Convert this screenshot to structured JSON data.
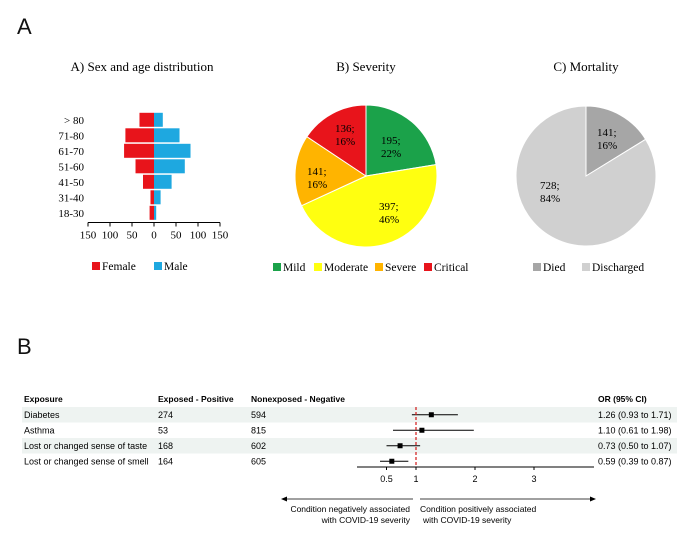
{
  "panel_labels": {
    "a": "A",
    "b": "B"
  },
  "chart_data": [
    {
      "type": "bar",
      "subtype": "population-pyramid",
      "title": "A) Sex and age distribution",
      "categories": [
        "> 80",
        "71-80",
        "61-70",
        "51-60",
        "41-50",
        "31-40",
        "18-30"
      ],
      "series": [
        {
          "name": "Female",
          "color": "#e8141b",
          "values": [
            33,
            65,
            68,
            42,
            25,
            8,
            10
          ]
        },
        {
          "name": "Male",
          "color": "#1ea8e0",
          "values": [
            20,
            58,
            83,
            70,
            40,
            15,
            5
          ]
        }
      ],
      "xticks": [
        "150",
        "100",
        "50",
        "0",
        "50",
        "100",
        "150"
      ],
      "xlim": [
        -150,
        150
      ]
    },
    {
      "type": "pie",
      "title": "B) Severity",
      "slices": [
        {
          "name": "Mild",
          "value": 195,
          "label": "195;",
          "pct": "22%",
          "color": "#1ba24a"
        },
        {
          "name": "Moderate",
          "value": 397,
          "label": "397;",
          "pct": "46%",
          "color": "#ffff10"
        },
        {
          "name": "Severe",
          "value": 141,
          "label": "141;",
          "pct": "16%",
          "color": "#ffb400"
        },
        {
          "name": "Critical",
          "value": 136,
          "label": "136;",
          "pct": "16%",
          "color": "#e8141b"
        }
      ]
    },
    {
      "type": "pie",
      "title": "C) Mortality",
      "slices": [
        {
          "name": "Died",
          "value": 141,
          "label": "141;",
          "pct": "16%",
          "color": "#a6a6a6"
        },
        {
          "name": "Discharged",
          "value": 728,
          "label": "728;",
          "pct": "84%",
          "color": "#d0d0d0"
        }
      ]
    },
    {
      "type": "forest",
      "headers": {
        "exposure": "Exposure",
        "exposed": "Exposed - Positive",
        "nonexposed": "Nonexposed - Negative",
        "or": "OR (95% CI)"
      },
      "rows": [
        {
          "exposure": "Diabetes",
          "exposed": "274",
          "nonexposed": "594",
          "or": 1.26,
          "lo": 0.93,
          "hi": 1.71,
          "or_text": "1.26 (0.93 to 1.71)"
        },
        {
          "exposure": "Asthma",
          "exposed": "53",
          "nonexposed": "815",
          "or": 1.1,
          "lo": 0.61,
          "hi": 1.98,
          "or_text": "1.10 (0.61 to 1.98)"
        },
        {
          "exposure": "Lost or changed sense of taste",
          "exposed": "168",
          "nonexposed": "602",
          "or": 0.73,
          "lo": 0.5,
          "hi": 1.07,
          "or_text": "0.73 (0.50 to 1.07)"
        },
        {
          "exposure": "Lost or changed sense of smell",
          "exposed": "164",
          "nonexposed": "605",
          "or": 0.59,
          "lo": 0.39,
          "hi": 0.87,
          "or_text": "0.59 (0.39 to 0.87)"
        }
      ],
      "xticks": [
        "0.5",
        "1",
        "2",
        "3"
      ],
      "xlim": [
        0,
        3.9
      ],
      "reference_line": 1,
      "left_note": [
        "Condition negatively associated",
        "with COVID-19 severity"
      ],
      "right_note": [
        "Condition positively associated",
        "with COVID-19 severity"
      ]
    }
  ]
}
